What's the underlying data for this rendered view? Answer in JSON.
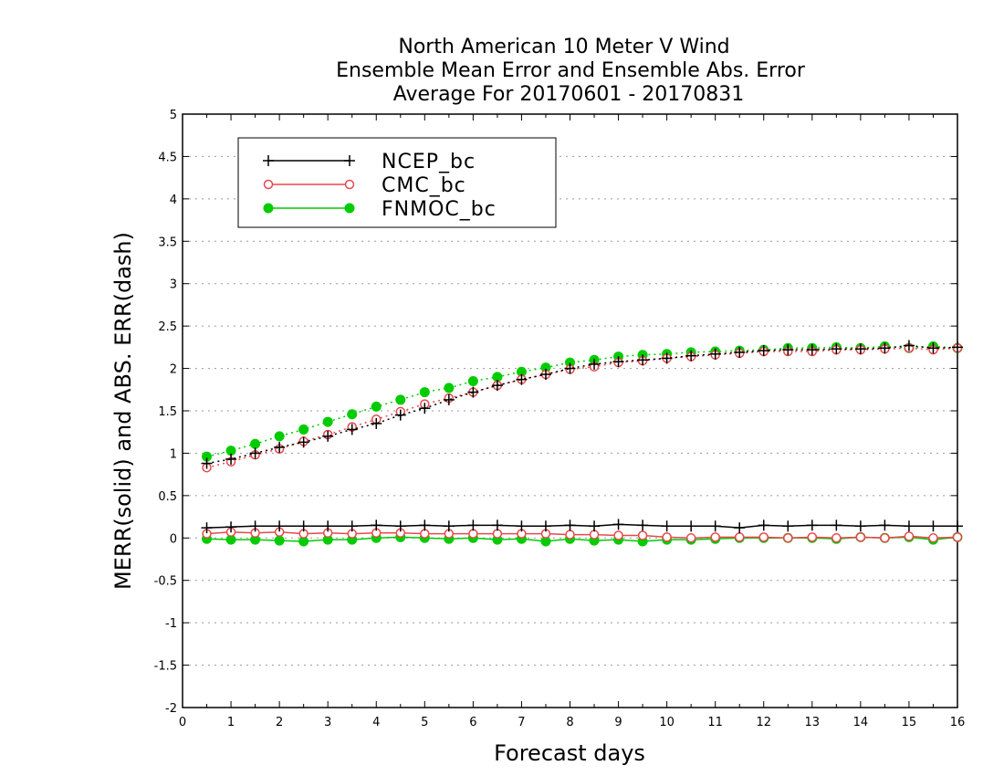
{
  "chart_data": {
    "type": "line",
    "title": [
      "North American 10 Meter V Wind",
      "Ensemble Mean Error and Ensemble Abs. Error",
      "Average For 20170601 - 20170831"
    ],
    "xlabel": "Forecast days",
    "ylabel": "MERR(solid) and ABS. ERR(dash)",
    "xlim": [
      0,
      16
    ],
    "ylim": [
      -2,
      5
    ],
    "xticks": [
      0,
      1,
      2,
      3,
      4,
      5,
      6,
      7,
      8,
      9,
      10,
      11,
      12,
      13,
      14,
      15,
      16
    ],
    "xtick_labels": [
      "0",
      "1",
      "2",
      "3",
      "4",
      "5",
      "6",
      "7",
      "8",
      "9",
      "10",
      "11",
      "12",
      "13",
      "14",
      "15",
      "16"
    ],
    "yticks": [
      -2,
      -1.5,
      -1,
      -0.5,
      0,
      0.5,
      1,
      1.5,
      2,
      2.5,
      3,
      3.5,
      4,
      4.5,
      5
    ],
    "ytick_labels": [
      "-2",
      "-1.5",
      "-1",
      "-0.5",
      "0",
      "0.5",
      "1",
      "1.5",
      "2",
      "2.5",
      "3",
      "3.5",
      "4",
      "4.5",
      "5"
    ],
    "grid": true,
    "legend_position": "top-left",
    "x": [
      0.5,
      1,
      1.5,
      2,
      2.5,
      3,
      3.5,
      4,
      4.5,
      5,
      5.5,
      6,
      6.5,
      7,
      7.5,
      8,
      8.5,
      9,
      9.5,
      10,
      10.5,
      11,
      11.5,
      12,
      12.5,
      13,
      13.5,
      14,
      14.5,
      15,
      15.5,
      16
    ],
    "series": [
      {
        "name": "NCEP_bc",
        "color": "#000000",
        "marker": "plus",
        "mean_error": [
          0.12,
          0.13,
          0.14,
          0.14,
          0.14,
          0.14,
          0.14,
          0.15,
          0.14,
          0.15,
          0.14,
          0.15,
          0.15,
          0.14,
          0.14,
          0.15,
          0.14,
          0.16,
          0.15,
          0.14,
          0.14,
          0.14,
          0.12,
          0.15,
          0.14,
          0.15,
          0.15,
          0.14,
          0.15,
          0.14,
          0.14,
          0.14
        ],
        "abs_error": [
          0.88,
          0.93,
          1.0,
          1.07,
          1.13,
          1.2,
          1.28,
          1.35,
          1.45,
          1.53,
          1.63,
          1.72,
          1.8,
          1.87,
          1.93,
          2.0,
          2.05,
          2.08,
          2.1,
          2.12,
          2.15,
          2.17,
          2.19,
          2.21,
          2.22,
          2.22,
          2.23,
          2.23,
          2.24,
          2.27,
          2.24,
          2.25
        ]
      },
      {
        "name": "CMC_bc",
        "color": "#e8484c",
        "marker": "open-circle",
        "mean_error": [
          0.05,
          0.07,
          0.06,
          0.07,
          0.05,
          0.06,
          0.05,
          0.06,
          0.06,
          0.05,
          0.05,
          0.05,
          0.05,
          0.05,
          0.05,
          0.04,
          0.04,
          0.03,
          0.03,
          0.01,
          0.0,
          0.01,
          0.01,
          0.01,
          0.0,
          0.01,
          0.0,
          0.01,
          0.0,
          0.02,
          0.0,
          0.01
        ],
        "abs_error": [
          0.83,
          0.9,
          0.98,
          1.05,
          1.14,
          1.22,
          1.31,
          1.4,
          1.49,
          1.58,
          1.65,
          1.72,
          1.8,
          1.87,
          1.93,
          1.99,
          2.02,
          2.07,
          2.09,
          2.12,
          2.14,
          2.16,
          2.18,
          2.2,
          2.2,
          2.2,
          2.22,
          2.22,
          2.23,
          2.24,
          2.22,
          2.24
        ]
      },
      {
        "name": "FNMOC_bc",
        "color": "#00cc00",
        "marker": "filled-circle",
        "mean_error": [
          -0.01,
          -0.02,
          -0.02,
          -0.03,
          -0.04,
          -0.02,
          -0.02,
          0.0,
          0.01,
          0.0,
          -0.01,
          0.0,
          -0.02,
          -0.01,
          -0.04,
          -0.01,
          -0.03,
          -0.02,
          -0.04,
          -0.02,
          -0.02,
          -0.01,
          0.0,
          0.0,
          0.0,
          0.0,
          -0.01,
          0.01,
          0.0,
          0.01,
          -0.02,
          0.01
        ],
        "abs_error": [
          0.96,
          1.03,
          1.11,
          1.2,
          1.28,
          1.37,
          1.46,
          1.55,
          1.63,
          1.72,
          1.77,
          1.85,
          1.9,
          1.96,
          2.01,
          2.07,
          2.1,
          2.14,
          2.16,
          2.17,
          2.19,
          2.2,
          2.21,
          2.22,
          2.24,
          2.24,
          2.25,
          2.24,
          2.26,
          2.24,
          2.26,
          2.24
        ]
      }
    ]
  }
}
